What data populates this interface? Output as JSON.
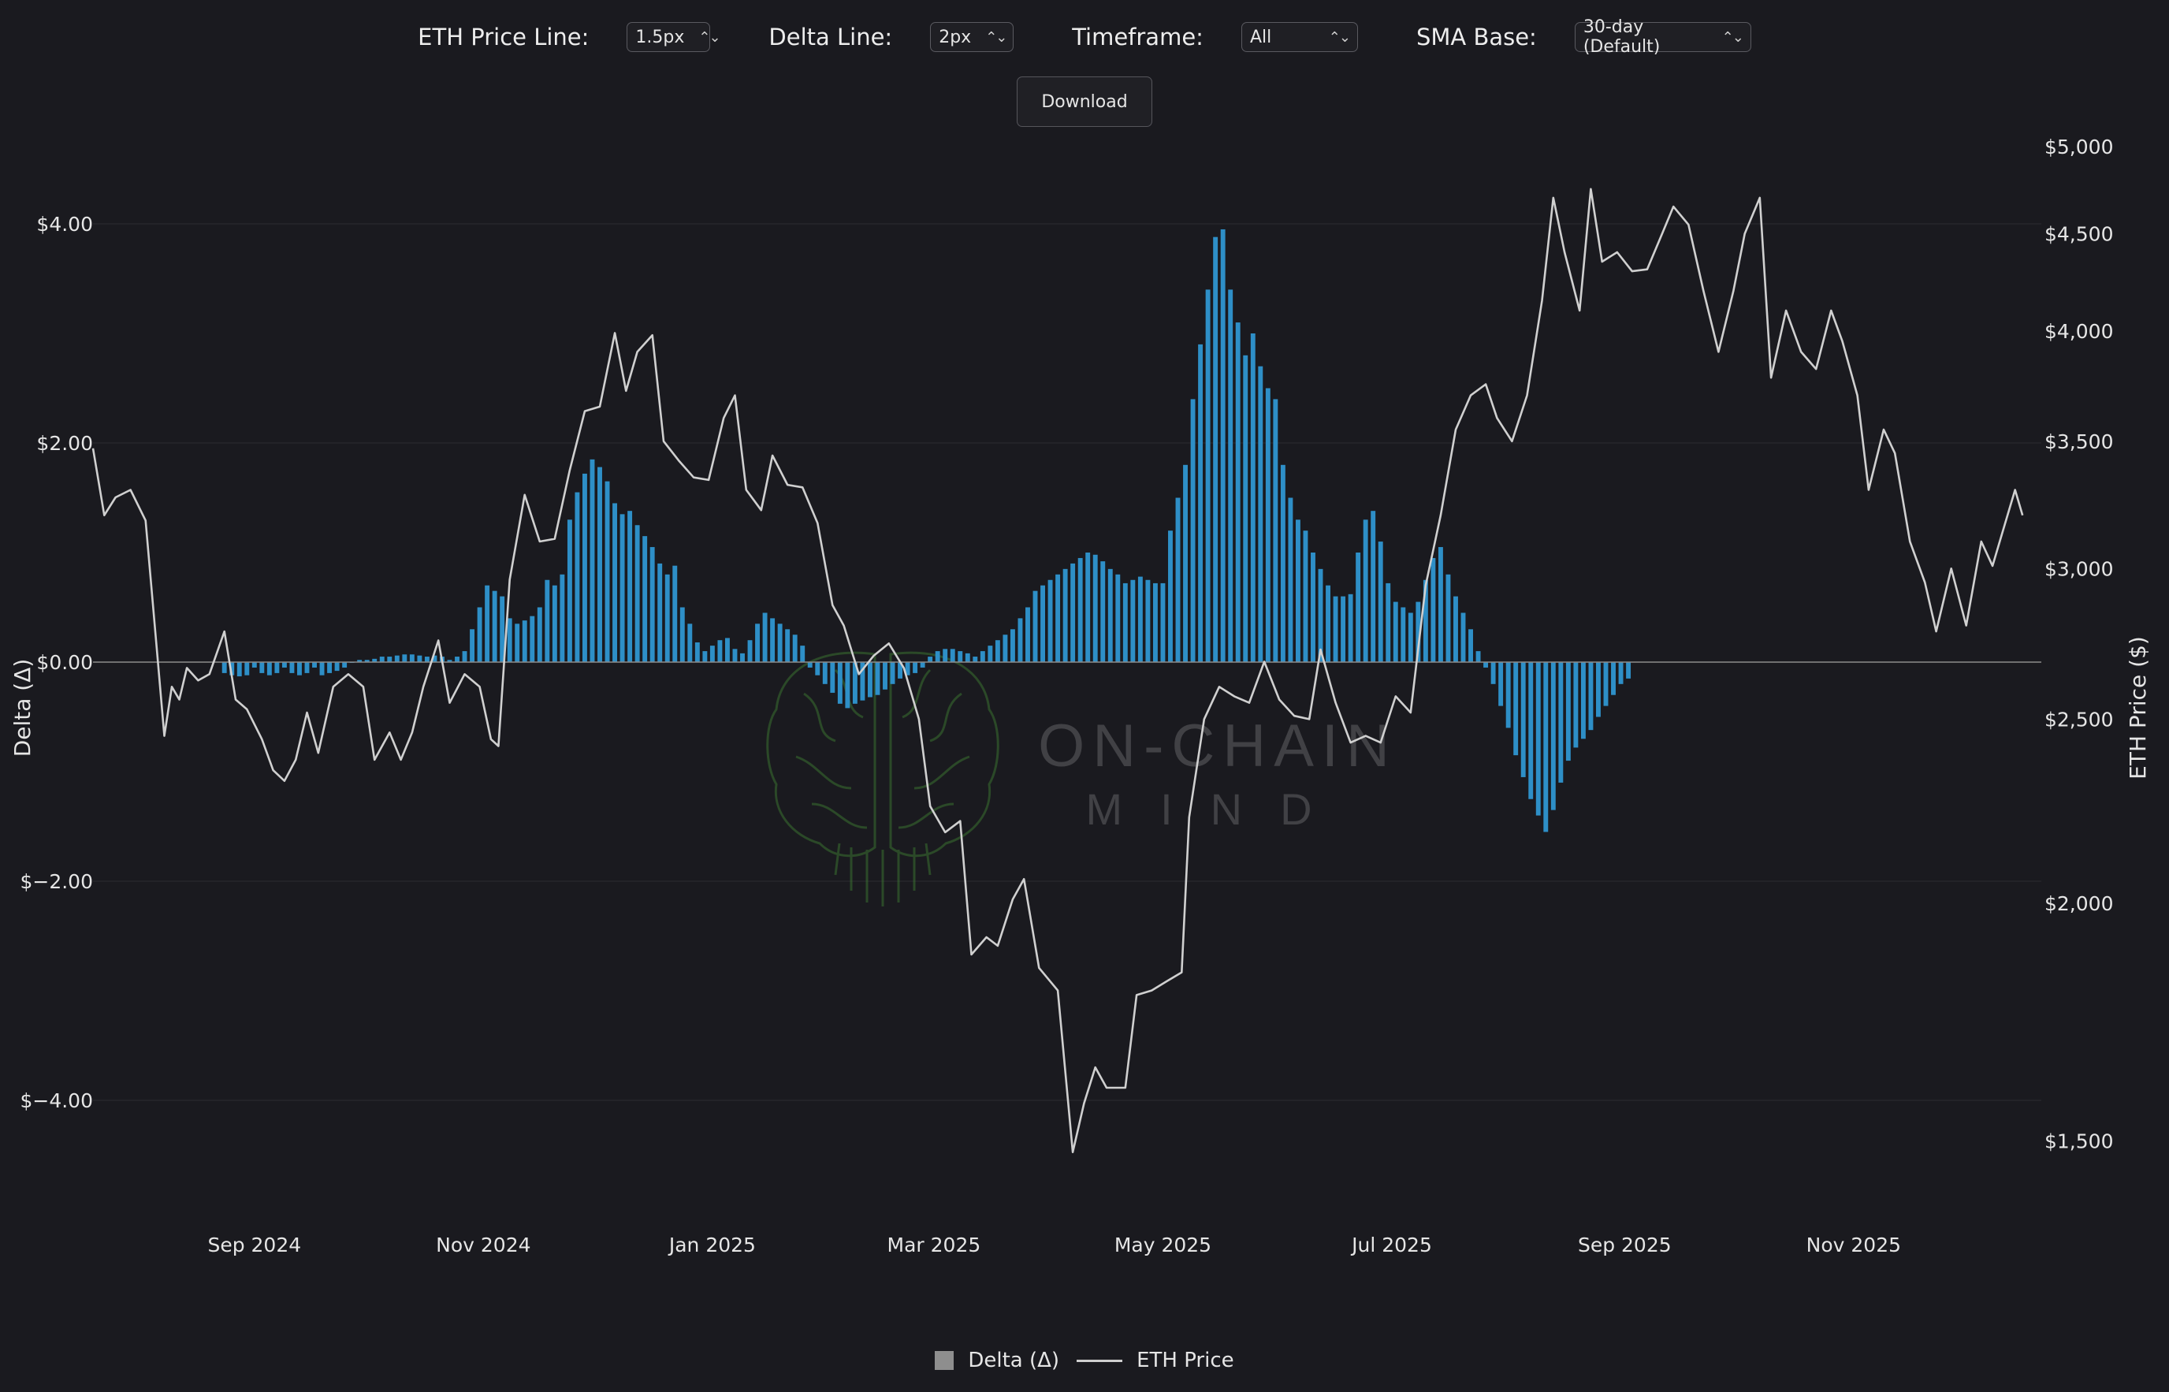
{
  "controls": {
    "price_line": {
      "label": "ETH Price Line:",
      "value": "1.5px"
    },
    "delta_line": {
      "label": "Delta Line:",
      "value": "2px"
    },
    "timeframe": {
      "label": "Timeframe:",
      "value": "All"
    },
    "sma_base": {
      "label": "SMA Base:",
      "value": "30-day (Default)"
    },
    "download_label": "Download"
  },
  "watermark": {
    "line1": "ON-CHAIN",
    "line2": "MIND"
  },
  "legend": {
    "delta": "Delta (Δ)",
    "price": "ETH Price"
  },
  "colors": {
    "background": "#1a1a1f",
    "bars": "#2e8fc7",
    "price_line": "#d0d0d0",
    "brain": "#3f7a33"
  },
  "chart_data": {
    "type": "bar+line",
    "x_axis": {
      "type": "date",
      "range": [
        "2024-07-20",
        "2025-12-21"
      ],
      "ticks": [
        "Sep 2024",
        "Nov 2024",
        "Jan 2025",
        "Mar 2025",
        "May 2025",
        "Jul 2025",
        "Sep 2025",
        "Nov 2025"
      ]
    },
    "y_left": {
      "label": "Delta (Δ)",
      "range": [
        -5.0,
        5.0
      ],
      "ticks": [
        "$4.00",
        "$2.00",
        "$0.00",
        "$−2.00",
        "$−4.00"
      ]
    },
    "y_right": {
      "label": "ETH Price ($)",
      "scale": "log",
      "range": [
        1380,
        5200
      ],
      "ticks": [
        "$5,000",
        "$4,500",
        "$4,000",
        "$3,500",
        "$3,000",
        "$2,500",
        "$2,000",
        "$1,500"
      ]
    },
    "series": [
      {
        "name": "Delta (Δ)",
        "type": "bar",
        "start": "2024-08-24",
        "step_days": 2,
        "values": [
          -0.1,
          -0.12,
          -0.13,
          -0.12,
          -0.05,
          -0.1,
          -0.12,
          -0.1,
          -0.05,
          -0.1,
          -0.12,
          -0.1,
          -0.05,
          -0.12,
          -0.1,
          -0.08,
          -0.05,
          0,
          0.02,
          0.02,
          0.03,
          0.05,
          0.05,
          0.06,
          0.07,
          0.07,
          0.06,
          0.05,
          0.06,
          0.05,
          0.02,
          0.05,
          0.1,
          0.3,
          0.5,
          0.7,
          0.65,
          0.6,
          0.4,
          0.35,
          0.38,
          0.42,
          0.5,
          0.75,
          0.7,
          0.8,
          1.3,
          1.55,
          1.72,
          1.85,
          1.78,
          1.65,
          1.45,
          1.35,
          1.38,
          1.25,
          1.15,
          1.05,
          0.9,
          0.8,
          0.88,
          0.5,
          0.35,
          0.18,
          0.1,
          0.15,
          0.2,
          0.22,
          0.12,
          0.08,
          0.2,
          0.35,
          0.45,
          0.4,
          0.35,
          0.3,
          0.25,
          0.15,
          -0.05,
          -0.12,
          -0.2,
          -0.28,
          -0.38,
          -0.42,
          -0.38,
          -0.35,
          -0.32,
          -0.3,
          -0.25,
          -0.2,
          -0.15,
          -0.12,
          -0.1,
          -0.05,
          0.05,
          0.1,
          0.12,
          0.12,
          0.1,
          0.08,
          0.05,
          0.1,
          0.15,
          0.2,
          0.25,
          0.3,
          0.4,
          0.5,
          0.65,
          0.7,
          0.75,
          0.8,
          0.85,
          0.9,
          0.95,
          1,
          0.98,
          0.92,
          0.85,
          0.8,
          0.72,
          0.75,
          0.78,
          0.75,
          0.72,
          0.72,
          1.2,
          1.5,
          1.8,
          2.4,
          2.9,
          3.4,
          3.88,
          3.95,
          3.4,
          3.1,
          2.8,
          3,
          2.7,
          2.5,
          2.4,
          1.8,
          1.5,
          1.3,
          1.2,
          1,
          0.85,
          0.7,
          0.6,
          0.6,
          0.62,
          1,
          1.3,
          1.38,
          1.1,
          0.72,
          0.55,
          0.5,
          0.45,
          0.55,
          0.75,
          0.95,
          1.05,
          0.8,
          0.6,
          0.45,
          0.3,
          0.1,
          -0.05,
          -0.2,
          -0.4,
          -0.6,
          -0.85,
          -1.05,
          -1.25,
          -1.4,
          -1.55,
          -1.35,
          -1.1,
          -0.9,
          -0.78,
          -0.7,
          -0.62,
          -0.5,
          -0.4,
          -0.3,
          -0.2,
          -0.15
        ]
      },
      {
        "name": "ETH Price",
        "type": "line",
        "points": [
          [
            "2024-07-20",
            3470
          ],
          [
            "2024-07-23",
            3200
          ],
          [
            "2024-07-26",
            3270
          ],
          [
            "2024-07-30",
            3300
          ],
          [
            "2024-08-03",
            3180
          ],
          [
            "2024-08-06",
            2720
          ],
          [
            "2024-08-08",
            2450
          ],
          [
            "2024-08-10",
            2600
          ],
          [
            "2024-08-12",
            2560
          ],
          [
            "2024-08-14",
            2660
          ],
          [
            "2024-08-17",
            2620
          ],
          [
            "2024-08-20",
            2640
          ],
          [
            "2024-08-24",
            2780
          ],
          [
            "2024-08-27",
            2560
          ],
          [
            "2024-08-30",
            2530
          ],
          [
            "2024-09-03",
            2440
          ],
          [
            "2024-09-06",
            2350
          ],
          [
            "2024-09-09",
            2320
          ],
          [
            "2024-09-12",
            2380
          ],
          [
            "2024-09-15",
            2520
          ],
          [
            "2024-09-18",
            2400
          ],
          [
            "2024-09-22",
            2600
          ],
          [
            "2024-09-26",
            2640
          ],
          [
            "2024-09-30",
            2600
          ],
          [
            "2024-10-03",
            2380
          ],
          [
            "2024-10-07",
            2460
          ],
          [
            "2024-10-10",
            2380
          ],
          [
            "2024-10-13",
            2460
          ],
          [
            "2024-10-16",
            2600
          ],
          [
            "2024-10-20",
            2750
          ],
          [
            "2024-10-23",
            2550
          ],
          [
            "2024-10-27",
            2640
          ],
          [
            "2024-10-31",
            2600
          ],
          [
            "2024-11-03",
            2440
          ],
          [
            "2024-11-05",
            2420
          ],
          [
            "2024-11-08",
            2960
          ],
          [
            "2024-11-12",
            3280
          ],
          [
            "2024-11-16",
            3100
          ],
          [
            "2024-11-20",
            3110
          ],
          [
            "2024-11-24",
            3380
          ],
          [
            "2024-11-28",
            3630
          ],
          [
            "2024-12-02",
            3650
          ],
          [
            "2024-12-06",
            3990
          ],
          [
            "2024-12-09",
            3720
          ],
          [
            "2024-12-12",
            3900
          ],
          [
            "2024-12-16",
            3980
          ],
          [
            "2024-12-19",
            3500
          ],
          [
            "2024-12-23",
            3420
          ],
          [
            "2024-12-27",
            3350
          ],
          [
            "2024-12-31",
            3340
          ],
          [
            "2025-01-04",
            3600
          ],
          [
            "2025-01-07",
            3700
          ],
          [
            "2025-01-10",
            3300
          ],
          [
            "2025-01-14",
            3220
          ],
          [
            "2025-01-17",
            3440
          ],
          [
            "2025-01-21",
            3320
          ],
          [
            "2025-01-25",
            3310
          ],
          [
            "2025-01-29",
            3170
          ],
          [
            "2025-02-02",
            2870
          ],
          [
            "2025-02-05",
            2800
          ],
          [
            "2025-02-09",
            2640
          ],
          [
            "2025-02-13",
            2700
          ],
          [
            "2025-02-17",
            2740
          ],
          [
            "2025-02-21",
            2660
          ],
          [
            "2025-02-25",
            2500
          ],
          [
            "2025-02-28",
            2250
          ],
          [
            "2025-03-04",
            2180
          ],
          [
            "2025-03-08",
            2210
          ],
          [
            "2025-03-11",
            1880
          ],
          [
            "2025-03-15",
            1920
          ],
          [
            "2025-03-18",
            1900
          ],
          [
            "2025-03-22",
            2010
          ],
          [
            "2025-03-25",
            2060
          ],
          [
            "2025-03-29",
            1850
          ],
          [
            "2025-04-03",
            1800
          ],
          [
            "2025-04-07",
            1480
          ],
          [
            "2025-04-10",
            1570
          ],
          [
            "2025-04-13",
            1640
          ],
          [
            "2025-04-16",
            1600
          ],
          [
            "2025-04-21",
            1600
          ],
          [
            "2025-04-24",
            1790
          ],
          [
            "2025-04-28",
            1800
          ],
          [
            "2025-05-02",
            1820
          ],
          [
            "2025-05-06",
            1840
          ],
          [
            "2025-05-08",
            2220
          ],
          [
            "2025-05-12",
            2500
          ],
          [
            "2025-05-16",
            2600
          ],
          [
            "2025-05-20",
            2570
          ],
          [
            "2025-05-24",
            2550
          ],
          [
            "2025-05-28",
            2680
          ],
          [
            "2025-06-01",
            2560
          ],
          [
            "2025-06-05",
            2510
          ],
          [
            "2025-06-09",
            2500
          ],
          [
            "2025-06-12",
            2720
          ],
          [
            "2025-06-16",
            2550
          ],
          [
            "2025-06-20",
            2430
          ],
          [
            "2025-06-24",
            2450
          ],
          [
            "2025-06-28",
            2430
          ],
          [
            "2025-07-02",
            2570
          ],
          [
            "2025-07-06",
            2520
          ],
          [
            "2025-07-10",
            2940
          ],
          [
            "2025-07-14",
            3200
          ],
          [
            "2025-07-18",
            3550
          ],
          [
            "2025-07-22",
            3700
          ],
          [
            "2025-07-26",
            3750
          ],
          [
            "2025-07-29",
            3600
          ],
          [
            "2025-08-02",
            3500
          ],
          [
            "2025-08-06",
            3700
          ],
          [
            "2025-08-10",
            4150
          ],
          [
            "2025-08-13",
            4700
          ],
          [
            "2025-08-16",
            4400
          ],
          [
            "2025-08-20",
            4100
          ],
          [
            "2025-08-23",
            4750
          ],
          [
            "2025-08-26",
            4350
          ],
          [
            "2025-08-30",
            4400
          ],
          [
            "2025-09-03",
            4300
          ],
          [
            "2025-09-07",
            4310
          ],
          [
            "2025-09-11",
            4500
          ],
          [
            "2025-09-14",
            4650
          ],
          [
            "2025-09-18",
            4550
          ],
          [
            "2025-09-22",
            4200
          ],
          [
            "2025-09-26",
            3900
          ],
          [
            "2025-09-30",
            4200
          ],
          [
            "2025-10-03",
            4500
          ],
          [
            "2025-10-07",
            4700
          ],
          [
            "2025-10-10",
            3780
          ],
          [
            "2025-10-14",
            4100
          ],
          [
            "2025-10-18",
            3900
          ],
          [
            "2025-10-22",
            3820
          ],
          [
            "2025-10-26",
            4100
          ],
          [
            "2025-10-29",
            3950
          ],
          [
            "2025-11-02",
            3700
          ],
          [
            "2025-11-05",
            3300
          ],
          [
            "2025-11-09",
            3550
          ],
          [
            "2025-11-12",
            3450
          ],
          [
            "2025-11-16",
            3100
          ],
          [
            "2025-11-20",
            2950
          ],
          [
            "2025-11-23",
            2780
          ],
          [
            "2025-11-27",
            3000
          ],
          [
            "2025-12-01",
            2800
          ],
          [
            "2025-12-05",
            3100
          ],
          [
            "2025-12-08",
            3010
          ],
          [
            "2025-12-12",
            3200
          ],
          [
            "2025-12-14",
            3300
          ],
          [
            "2025-12-16",
            3200
          ]
        ]
      }
    ],
    "grid": true,
    "legend_position": "bottom-center"
  }
}
